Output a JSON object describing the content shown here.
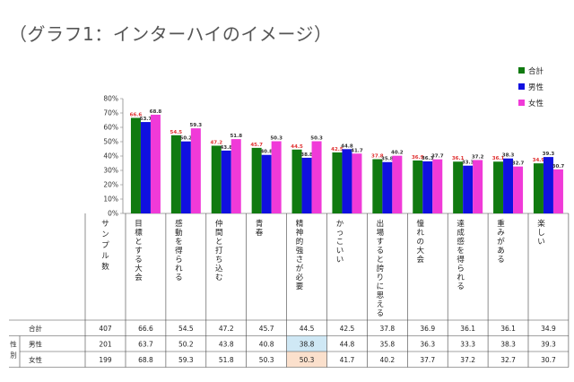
{
  "page_title": "（グラフ1：インターハイのイメージ）",
  "chart_data": {
    "type": "bar",
    "title": "",
    "xlabel": "",
    "ylabel": "",
    "ylim": [
      0,
      80
    ],
    "yticks": [
      "0%",
      "10%",
      "20%",
      "30%",
      "40%",
      "50%",
      "60%",
      "70%",
      "80%"
    ],
    "grid": false,
    "legend_position": "top-right",
    "categories": [
      "目標とする大会",
      "感動を得られる",
      "仲間と打ち込む",
      "青春",
      "精神的強さが必要",
      "かっこいい",
      "出場すると誇りに思える",
      "憧れの大会",
      "達成感を得られる",
      "重みがある",
      "楽しい"
    ],
    "series": [
      {
        "name": "合計",
        "color": "#107a10",
        "values": [
          66.6,
          54.5,
          47.2,
          45.7,
          44.5,
          42.5,
          37.8,
          36.9,
          36.1,
          36.1,
          34.9
        ]
      },
      {
        "name": "男性",
        "color": "#1010e0",
        "values": [
          63.7,
          50.2,
          43.8,
          40.8,
          38.8,
          44.8,
          35.8,
          36.3,
          33.3,
          38.3,
          39.3
        ]
      },
      {
        "name": "女性",
        "color": "#f03ad8",
        "values": [
          68.8,
          59.3,
          51.8,
          50.3,
          50.3,
          41.7,
          40.2,
          37.7,
          37.2,
          32.7,
          30.7
        ]
      }
    ]
  },
  "table": {
    "header_first": "サンプル数",
    "group_label": "性別",
    "rows": [
      {
        "label": "合計",
        "sample": "407",
        "cells": [
          "66.6",
          "54.5",
          "47.2",
          "45.7",
          "44.5",
          "42.5",
          "37.8",
          "36.9",
          "36.1",
          "36.1",
          "34.9"
        ]
      },
      {
        "label": "男性",
        "sample": "201",
        "cells": [
          "63.7",
          "50.2",
          "43.8",
          "40.8",
          "38.8",
          "44.8",
          "35.8",
          "36.3",
          "33.3",
          "38.3",
          "39.3"
        ]
      },
      {
        "label": "女性",
        "sample": "199",
        "cells": [
          "68.8",
          "59.3",
          "51.8",
          "50.3",
          "50.3",
          "41.7",
          "40.2",
          "37.7",
          "37.2",
          "32.7",
          "30.7"
        ]
      }
    ],
    "highlight_colors": {
      "男性": "#cfe8f5",
      "女性": "#fbe0cc"
    }
  }
}
